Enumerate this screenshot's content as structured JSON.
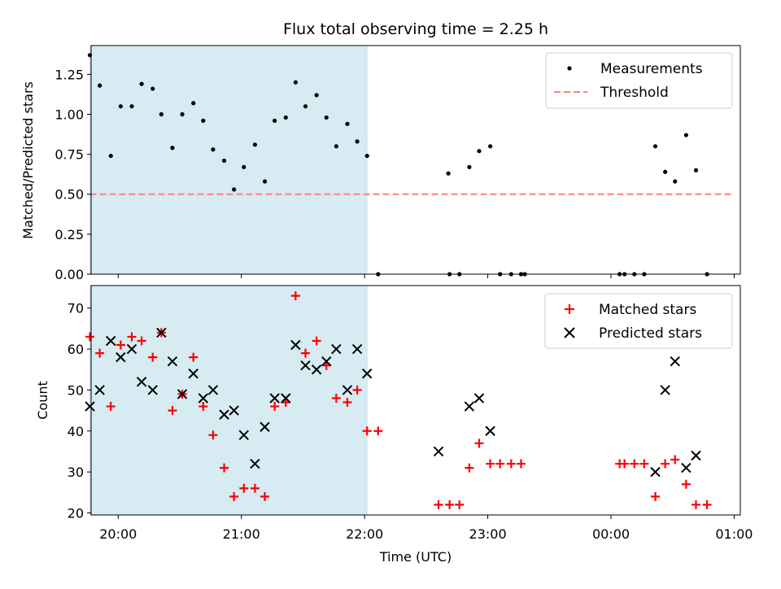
{
  "title": "Flux total observing time = 2.25 h",
  "colors": {
    "shade": "#add8e6",
    "threshold": "#ff7f7f",
    "matched": "#ff0000",
    "predicted": "#000000",
    "measurement": "#000000"
  },
  "chart_data": [
    {
      "type": "scatter",
      "name": "ratio-panel",
      "ylabel": "Matched/Predicted stars",
      "xlim": [
        -0.22,
        5.05
      ],
      "ylim": [
        0.0,
        1.43
      ],
      "x_ticks": [
        0,
        1,
        2,
        3,
        4,
        5
      ],
      "x_tick_labels": [
        "20:00",
        "21:00",
        "22:00",
        "23:00",
        "00:00",
        "01:00"
      ],
      "y_ticks": [
        0.0,
        0.25,
        0.5,
        0.75,
        1.0,
        1.25
      ],
      "y_tick_labels": [
        "0.00",
        "0.25",
        "0.50",
        "0.75",
        "1.00",
        "1.25"
      ],
      "shaded_range": [
        -0.23,
        2.02
      ],
      "legend": [
        "Measurements",
        "Threshold"
      ],
      "threshold": {
        "name": "Threshold",
        "value": 0.5,
        "x_range": [
          -0.23,
          5.0
        ]
      },
      "series": [
        {
          "name": "Measurements",
          "x": [
            -0.23,
            -0.15,
            -0.06,
            0.02,
            0.11,
            0.19,
            0.28,
            0.35,
            0.44,
            0.52,
            0.61,
            0.69,
            0.77,
            0.86,
            0.94,
            1.02,
            1.11,
            1.19,
            1.27,
            1.36,
            1.44,
            1.52,
            1.61,
            1.69,
            1.77,
            1.86,
            1.94,
            2.02,
            2.11,
            2.68,
            2.69,
            2.77,
            2.85,
            2.93,
            3.02,
            3.1,
            3.19,
            3.27,
            3.3,
            4.07,
            4.11,
            4.19,
            4.27,
            4.36,
            4.44,
            4.52,
            4.61,
            4.69,
            4.78
          ],
          "y": [
            1.37,
            1.18,
            0.74,
            1.05,
            1.05,
            1.19,
            1.16,
            1.0,
            0.79,
            1.0,
            1.07,
            0.96,
            0.78,
            0.71,
            0.53,
            0.67,
            0.81,
            0.58,
            0.96,
            0.98,
            1.2,
            1.05,
            1.12,
            0.98,
            0.8,
            0.94,
            0.83,
            0.74,
            0.0,
            0.63,
            0.0,
            0.0,
            0.67,
            0.77,
            0.8,
            0.0,
            0.0,
            0.0,
            0.0,
            0.0,
            0.0,
            0.0,
            0.0,
            0.8,
            0.64,
            0.58,
            0.87,
            0.65,
            0.0
          ]
        }
      ]
    },
    {
      "type": "scatter",
      "name": "count-panel",
      "xlabel": "Time (UTC)",
      "ylabel": "Count",
      "xlim": [
        -0.22,
        5.05
      ],
      "ylim": [
        19.5,
        75.5
      ],
      "x_ticks": [
        0,
        1,
        2,
        3,
        4,
        5
      ],
      "x_tick_labels": [
        "20:00",
        "21:00",
        "22:00",
        "23:00",
        "00:00",
        "01:00"
      ],
      "y_ticks": [
        20,
        30,
        40,
        50,
        60,
        70
      ],
      "y_tick_labels": [
        "20",
        "30",
        "40",
        "50",
        "60",
        "70"
      ],
      "shaded_range": [
        -0.23,
        2.02
      ],
      "legend": [
        "Matched stars",
        "Predicted stars"
      ],
      "series": [
        {
          "name": "Matched stars",
          "marker": "plus",
          "x": [
            -0.23,
            -0.15,
            -0.06,
            0.02,
            0.11,
            0.19,
            0.28,
            0.35,
            0.44,
            0.52,
            0.61,
            0.69,
            0.77,
            0.86,
            0.94,
            1.02,
            1.11,
            1.19,
            1.27,
            1.36,
            1.44,
            1.52,
            1.61,
            1.69,
            1.77,
            1.86,
            1.94,
            2.02,
            2.11,
            2.6,
            2.69,
            2.77,
            2.85,
            2.93,
            3.02,
            3.1,
            3.19,
            3.27,
            4.07,
            4.11,
            4.19,
            4.27,
            4.36,
            4.44,
            4.52,
            4.61,
            4.69,
            4.78
          ],
          "y": [
            63,
            59,
            46,
            61,
            63,
            62,
            58,
            64,
            45,
            49,
            58,
            46,
            39,
            31,
            24,
            26,
            26,
            24,
            46,
            47,
            73,
            59,
            62,
            56,
            48,
            47,
            50,
            40,
            40,
            22,
            22,
            22,
            31,
            37,
            32,
            32,
            32,
            32,
            32,
            32,
            32,
            32,
            24,
            32,
            33,
            27,
            22,
            22
          ]
        },
        {
          "name": "Predicted stars",
          "marker": "x",
          "x": [
            -0.23,
            -0.15,
            -0.06,
            0.02,
            0.11,
            0.19,
            0.28,
            0.35,
            0.44,
            0.52,
            0.61,
            0.69,
            0.77,
            0.86,
            0.94,
            1.02,
            1.11,
            1.19,
            1.27,
            1.36,
            1.44,
            1.52,
            1.61,
            1.69,
            1.77,
            1.86,
            1.94,
            2.02,
            2.6,
            2.85,
            2.93,
            3.02,
            4.36,
            4.44,
            4.52,
            4.61,
            4.69
          ],
          "y": [
            46,
            50,
            62,
            58,
            60,
            52,
            50,
            64,
            57,
            49,
            54,
            48,
            50,
            44,
            45,
            39,
            32,
            41,
            48,
            48,
            61,
            56,
            55,
            57,
            60,
            50,
            60,
            54,
            35,
            46,
            48,
            40,
            30,
            50,
            57,
            31,
            34
          ]
        }
      ]
    }
  ]
}
